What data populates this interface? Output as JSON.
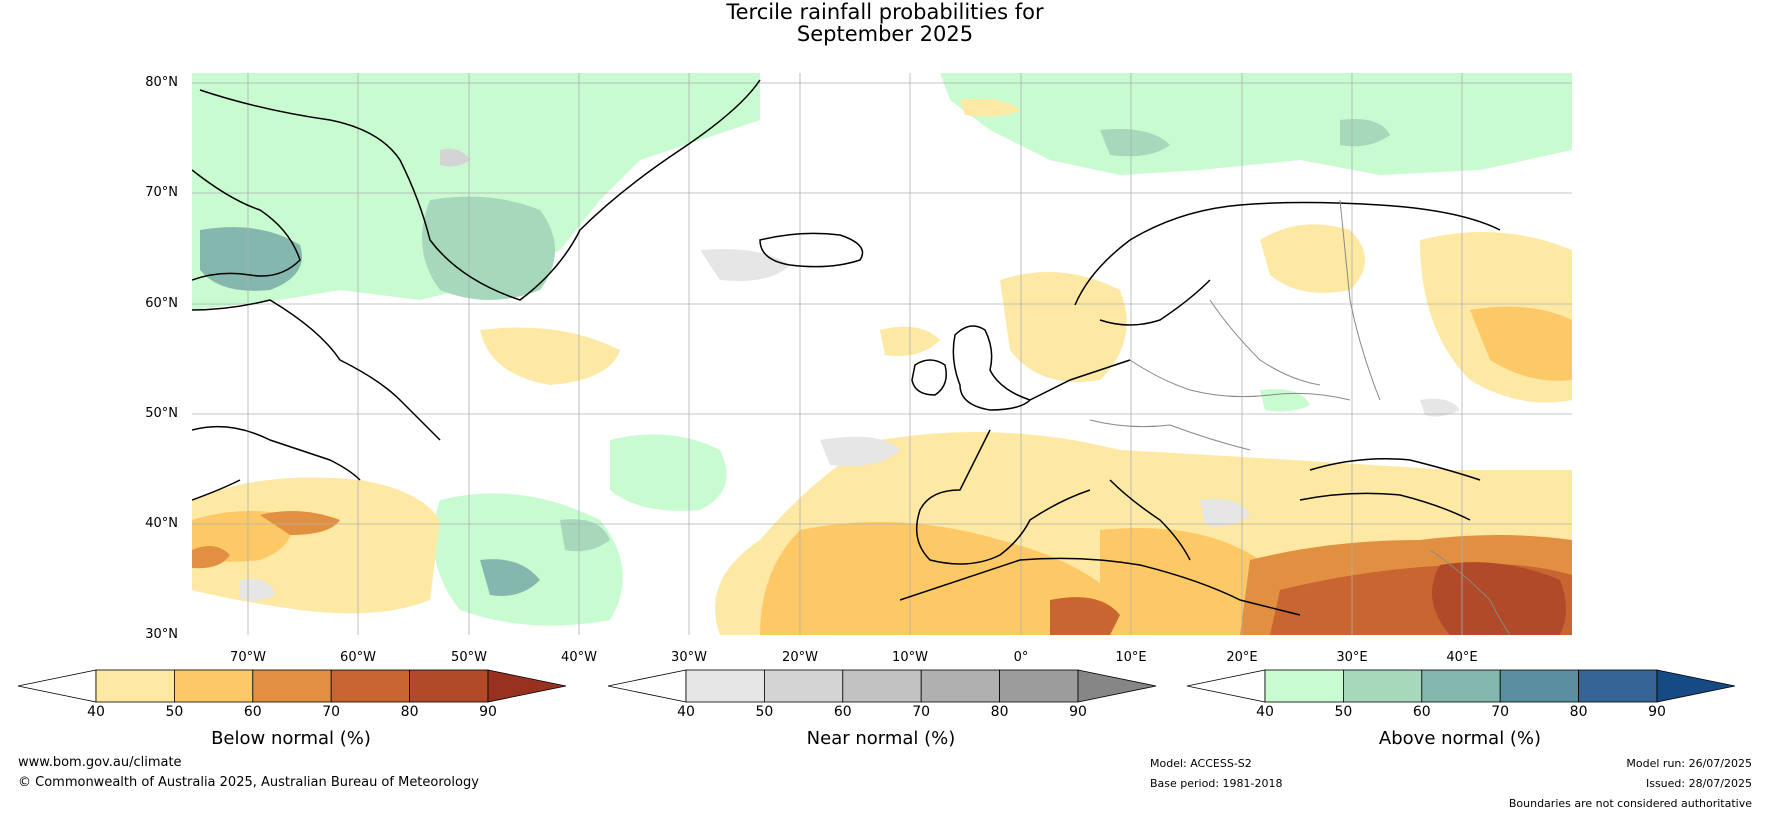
{
  "title": {
    "line1": "Tercile rainfall probabilities for",
    "line2": "September 2025"
  },
  "map": {
    "lat_labels": [
      "80°N",
      "70°N",
      "60°N",
      "50°N",
      "40°N",
      "30°N"
    ],
    "lon_labels": [
      "70°W",
      "60°W",
      "50°W",
      "40°W",
      "30°W",
      "20°W",
      "10°W",
      "0°",
      "10°E",
      "20°E",
      "30°E",
      "40°E"
    ]
  },
  "colorbars": [
    {
      "label": "Below normal (%)",
      "ticks": [
        "40",
        "50",
        "60",
        "70",
        "80",
        "90"
      ],
      "colors": [
        "#ffffff",
        "#fde9a3",
        "#fdc966",
        "#e09040",
        "#c96530",
        "#b04a28",
        "#96321f"
      ]
    },
    {
      "label": "Near normal (%)",
      "ticks": [
        "40",
        "50",
        "60",
        "70",
        "80",
        "90"
      ],
      "colors": [
        "#ffffff",
        "#e6e6e6",
        "#d4d4d4",
        "#c2c2c2",
        "#b0b0b0",
        "#9c9c9c",
        "#868686"
      ]
    },
    {
      "label": "Above normal (%)",
      "ticks": [
        "40",
        "50",
        "60",
        "70",
        "80",
        "90"
      ],
      "colors": [
        "#ffffff",
        "#c8fbd0",
        "#a6d8bc",
        "#84b8ae",
        "#5a8fa0",
        "#346594",
        "#164a82"
      ]
    }
  ],
  "footer": {
    "url": "www.bom.gov.au/climate",
    "copyright": "© Commonwealth of Australia 2025, Australian Bureau of Meteorology",
    "model": "Model: ACCESS-S2",
    "base_period": "Base period: 1981-2018",
    "model_run": "Model run: 26/07/2025",
    "issued": "Issued: 28/07/2025",
    "disclaimer": "Boundaries are not considered authoritative"
  }
}
